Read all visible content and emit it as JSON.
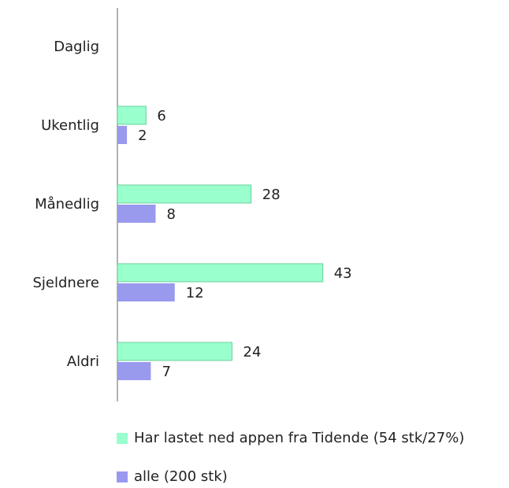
{
  "chart_data": {
    "type": "bar",
    "orientation": "horizontal",
    "categories": [
      "Daglig",
      "Ukentlig",
      "Månedlig",
      "Sjeldnere",
      "Aldri"
    ],
    "series": [
      {
        "name": "Har lastet ned appen fra Tidende (54 stk/27%)",
        "color": "#99ffcc",
        "values": [
          null,
          6,
          28,
          43,
          24
        ]
      },
      {
        "name": "alle (200 stk)",
        "color": "#9999ee",
        "values": [
          null,
          2,
          8,
          12,
          7
        ]
      }
    ],
    "xlim": [
      0,
      80
    ],
    "legend": "bottom"
  }
}
